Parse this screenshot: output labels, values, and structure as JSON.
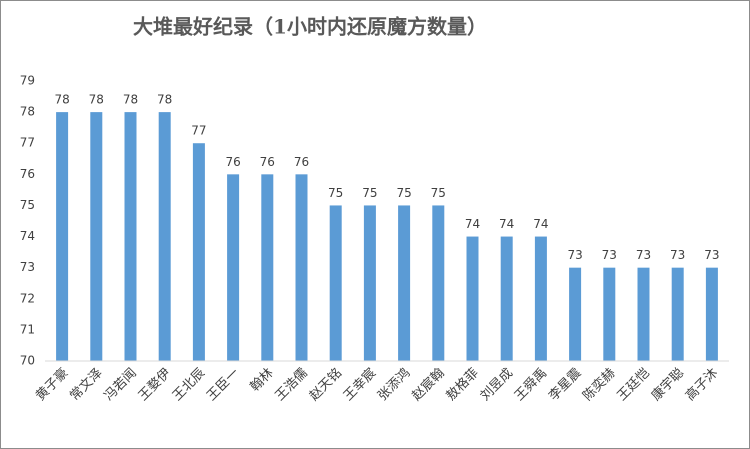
{
  "chart_data": {
    "type": "bar",
    "title": "大堆最好纪录（1小时内还原魔方数量）",
    "categories": [
      "黄子豪",
      "常文泽",
      "冯若闻",
      "王婺伊",
      "王北辰",
      "王臣一",
      "翰林",
      "王浩儒",
      "赵天铭",
      "王幸宸",
      "张添鸿",
      "赵宸翰",
      "敖格菲",
      "刘昱成",
      "王舜禹",
      "李星震",
      "陈奕赫",
      "王廷恺",
      "康宇聪",
      "高子沐"
    ],
    "values": [
      78,
      78,
      78,
      78,
      77,
      76,
      76,
      76,
      75,
      75,
      75,
      75,
      74,
      74,
      74,
      73,
      73,
      73,
      73,
      73
    ],
    "color": "#5b9bd5",
    "ylim": [
      70,
      79
    ],
    "yticks": [
      70,
      71,
      72,
      73,
      74,
      75,
      76,
      77,
      78,
      79
    ],
    "grid": false
  }
}
